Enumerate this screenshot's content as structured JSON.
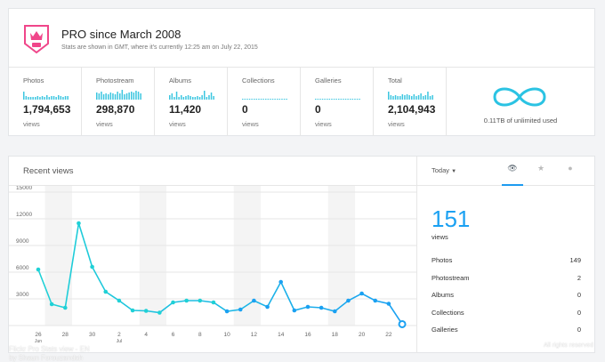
{
  "header": {
    "title": "PRO since March 2008",
    "subtitle": "Stats are shown in GMT, where it's currently 12:25 am on July 22, 2015",
    "badge_text": "PRO"
  },
  "stats": [
    {
      "label": "Photos",
      "value": "1,794,653",
      "unit": "views"
    },
    {
      "label": "Photostream",
      "value": "298,870",
      "unit": "views"
    },
    {
      "label": "Albums",
      "value": "11,420",
      "unit": "views"
    },
    {
      "label": "Collections",
      "value": "0",
      "unit": "views"
    },
    {
      "label": "Galleries",
      "value": "0",
      "unit": "views"
    },
    {
      "label": "Total",
      "value": "2,104,943",
      "unit": "views"
    }
  ],
  "storage": {
    "text": "0.11TB of unlimited used",
    "icon": "infinity-icon"
  },
  "recent": {
    "title": "Recent views"
  },
  "chart_data": {
    "type": "line",
    "title": "Recent views",
    "x": [
      "26",
      "27",
      "28",
      "29",
      "30",
      "1",
      "2",
      "3",
      "4",
      "5",
      "6",
      "7",
      "8",
      "9",
      "10",
      "11",
      "12",
      "13",
      "14",
      "15",
      "16",
      "17",
      "18",
      "19",
      "20",
      "21",
      "22",
      "23"
    ],
    "xticks": [
      {
        "label": "26",
        "sub": "Jun",
        "i": 0
      },
      {
        "label": "28",
        "i": 2
      },
      {
        "label": "30",
        "i": 4
      },
      {
        "label": "2",
        "sub": "Jul",
        "i": 6
      },
      {
        "label": "4",
        "i": 8
      },
      {
        "label": "6",
        "i": 10
      },
      {
        "label": "8",
        "i": 12
      },
      {
        "label": "10",
        "i": 14
      },
      {
        "label": "12",
        "i": 16
      },
      {
        "label": "14",
        "i": 18
      },
      {
        "label": "16",
        "i": 20
      },
      {
        "label": "18",
        "i": 22
      },
      {
        "label": "20",
        "i": 24
      },
      {
        "label": "22",
        "i": 26
      }
    ],
    "values": [
      6300,
      2400,
      2000,
      11500,
      6600,
      3800,
      2800,
      1700,
      1650,
      1450,
      2600,
      2800,
      2800,
      2600,
      1600,
      1800,
      2800,
      2100,
      4900,
      1700,
      2100,
      2000,
      1600,
      2800,
      3600,
      2800,
      2450,
      151
    ],
    "ylim": [
      0,
      15000
    ],
    "yticks": [
      "15000",
      "12000",
      "9000",
      "6000",
      "3000"
    ],
    "weekend_bands": [
      [
        1,
        2
      ],
      [
        8,
        9
      ],
      [
        15,
        16
      ],
      [
        22,
        23
      ]
    ],
    "grid": true,
    "colors": {
      "start": "#1fd1d6",
      "end": "#1ba1f2"
    }
  },
  "side": {
    "period": "Today",
    "tabs": [
      {
        "icon": "eye-icon",
        "active": true
      },
      {
        "icon": "star-icon"
      },
      {
        "icon": "comment-icon"
      }
    ],
    "total": "151",
    "total_label": "views",
    "rows": [
      {
        "label": "Photos",
        "value": "149"
      },
      {
        "label": "Photostream",
        "value": "2"
      },
      {
        "label": "Albums",
        "value": "0"
      },
      {
        "label": "Collections",
        "value": "0"
      },
      {
        "label": "Galleries",
        "value": "0"
      }
    ]
  },
  "watermark": {
    "line1": "Flickr Pro Stats view - EN",
    "line2": "by Shaun Forouzandah",
    "rights": "All rights reserved"
  },
  "colors": {
    "accent": "#1ba1f2",
    "pro_pink": "#f0468a",
    "teal": "#1fd1d6"
  }
}
